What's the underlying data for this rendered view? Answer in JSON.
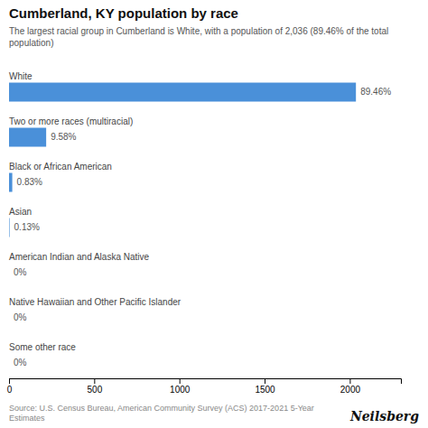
{
  "chart_data": {
    "type": "bar",
    "orientation": "horizontal",
    "title": "Cumberland, KY population by race",
    "subtitle": "The largest racial group in Cumberland is White, with a population of 2,036 (89.46% of the total\npopulation)",
    "categories": [
      "White",
      "Two or more races (multiracial)",
      "Black or African American",
      "Asian",
      "American Indian and Alaska Native",
      "Native Hawaiian and Other Pacific Islander",
      "Some other race"
    ],
    "values": [
      2036,
      218,
      19,
      3,
      0,
      0,
      0
    ],
    "percentages": [
      "89.46%",
      "9.58%",
      "0.83%",
      "0.13%",
      "0%",
      "0%",
      "0%"
    ],
    "color": "#4a90d9",
    "xlim": [
      0,
      2300
    ],
    "xticks": [
      0,
      500,
      1000,
      1500,
      2000
    ],
    "grid": false,
    "annotations": [
      "Source: U.S. Census Bureau, American Community Survey (ACS) 2017-2021 5-Year Estimates",
      "Neilsberg"
    ]
  }
}
